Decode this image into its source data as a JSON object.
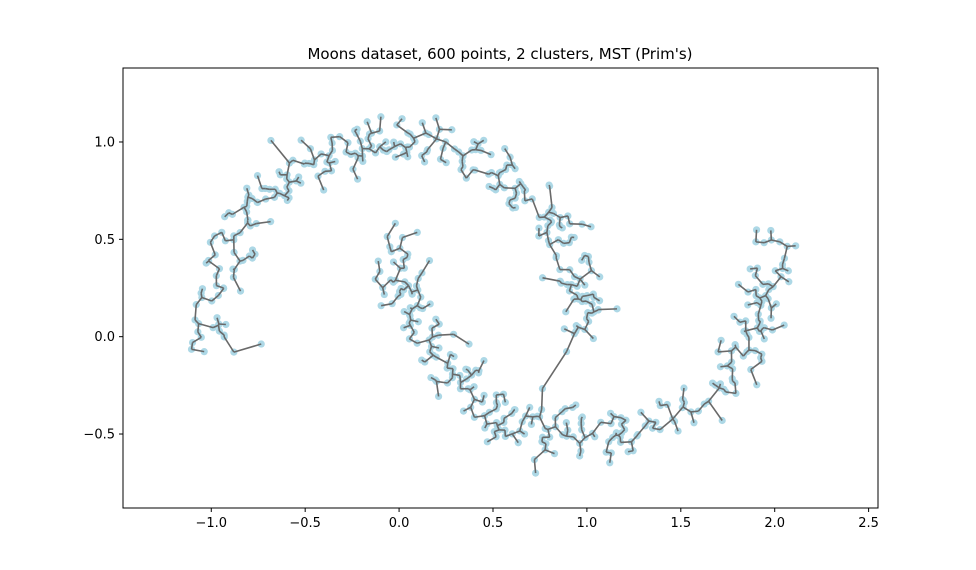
{
  "chart_data": {
    "type": "scatter",
    "title": "Moons dataset, 600 points, 2 clusters, MST (Prim's)",
    "xlabel": "",
    "ylabel": "",
    "xlim": [
      -1.47,
      2.55
    ],
    "ylim": [
      -0.88,
      1.38
    ],
    "x_ticks": [
      -1.0,
      -0.5,
      0.0,
      0.5,
      1.0,
      1.5,
      2.0,
      2.5
    ],
    "x_tick_labels": [
      "−1.0",
      "−0.5",
      "0.0",
      "0.5",
      "1.0",
      "1.5",
      "2.0",
      "2.5"
    ],
    "y_ticks": [
      -0.5,
      0.0,
      0.5,
      1.0
    ],
    "y_tick_labels": [
      "−0.5",
      "0.0",
      "0.5",
      "1.0"
    ],
    "grid": false,
    "legend": "none",
    "n_points": 600,
    "n_clusters": 2,
    "point_color": "#add8e6",
    "edge_color": "#696969",
    "seed": 7,
    "noise": 0.07
  }
}
